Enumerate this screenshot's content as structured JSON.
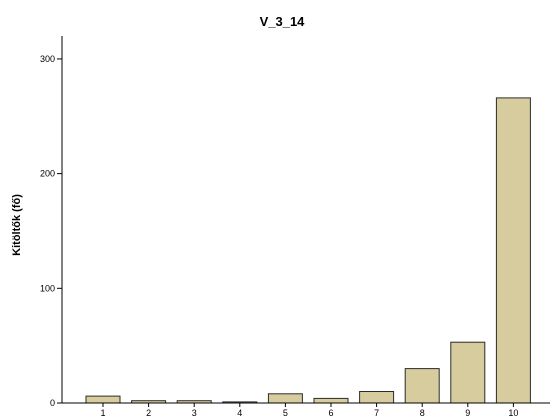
{
  "chart_data": {
    "type": "bar",
    "title": "V_3_14",
    "xlabel": "",
    "ylabel": "Kitöltők (fő)",
    "categories": [
      "1",
      "2",
      "3",
      "4",
      "5",
      "6",
      "7",
      "8",
      "9",
      "10"
    ],
    "values": [
      6,
      2,
      2,
      1,
      8,
      4,
      10,
      30,
      53,
      266
    ],
    "ylim": [
      0,
      320
    ],
    "yticks": [
      0,
      100,
      200,
      300
    ],
    "grid": false,
    "legend": "none",
    "colors": {
      "bar_fill": "#d6cc9e",
      "bar_stroke": "#2b2b2b",
      "plot_background": "#ffffff",
      "page_background": "#ffffff"
    }
  }
}
